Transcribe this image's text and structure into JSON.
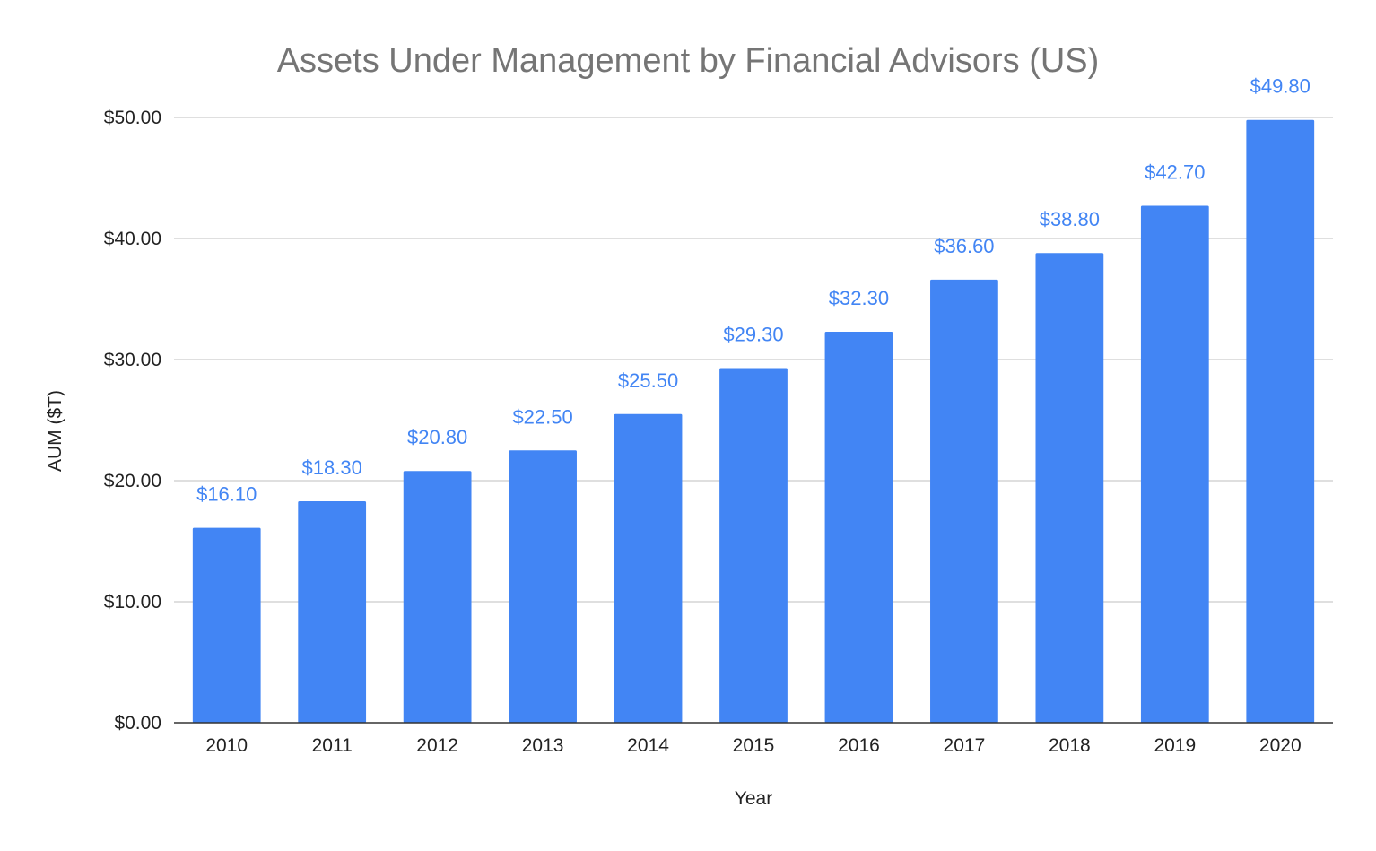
{
  "chart_data": {
    "type": "bar",
    "title": "Assets Under Management by Financial Advisors (US)",
    "xlabel": "Year",
    "ylabel": "AUM ($T)",
    "categories": [
      "2010",
      "2011",
      "2012",
      "2013",
      "2014",
      "2015",
      "2016",
      "2017",
      "2018",
      "2019",
      "2020"
    ],
    "values": [
      16.1,
      18.3,
      20.8,
      22.5,
      25.5,
      29.3,
      32.3,
      36.6,
      38.8,
      42.7,
      49.8
    ],
    "data_labels": [
      "$16.10",
      "$18.30",
      "$20.80",
      "$22.50",
      "$25.50",
      "$29.30",
      "$32.30",
      "$36.60",
      "$38.80",
      "$42.70",
      "$49.80"
    ],
    "ylim": [
      0,
      50
    ],
    "y_ticks": [
      0,
      10,
      20,
      30,
      40,
      50
    ],
    "y_tick_labels": [
      "$0.00",
      "$10.00",
      "$20.00",
      "$30.00",
      "$40.00",
      "$50.00"
    ],
    "grid": true,
    "legend": "none",
    "colors": {
      "bar": "#4285f4",
      "data_label": "#4285f4",
      "gridline": "#cccccc",
      "baseline": "#333333",
      "title": "#757575"
    }
  }
}
